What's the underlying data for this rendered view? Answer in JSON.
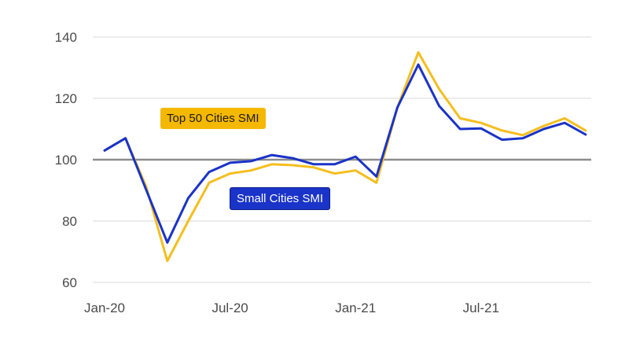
{
  "chart_data": {
    "type": "line",
    "x": [
      "Jan-20",
      "Feb-20",
      "Mar-20",
      "Apr-20",
      "May-20",
      "Jun-20",
      "Jul-20",
      "Aug-20",
      "Sep-20",
      "Oct-20",
      "Nov-20",
      "Dec-20",
      "Jan-21",
      "Feb-21",
      "Mar-21",
      "Apr-21",
      "May-21",
      "Jun-21",
      "Jul-21",
      "Aug-21",
      "Sep-21",
      "Oct-21",
      "Nov-21",
      "Dec-21"
    ],
    "x_tick_labels": [
      "Jan-20",
      "Jul-20",
      "Jan-21",
      "Jul-21"
    ],
    "y_ticks": [
      60,
      80,
      100,
      120,
      140
    ],
    "ylim": [
      60,
      140
    ],
    "reference_line": 100,
    "grid": "horizontal",
    "series": [
      {
        "name": "Top 50 Cities SMI",
        "color": "#F5BE1E",
        "values": [
          103,
          107,
          91,
          67,
          80,
          92.5,
          95.5,
          96.5,
          98.5,
          98.2,
          97.5,
          95.5,
          96.5,
          92.5,
          117,
          135,
          123,
          113.5,
          112,
          109.5,
          108,
          111,
          113.5,
          109.5
        ]
      },
      {
        "name": "Small Cities SMI",
        "color": "#1A33C8",
        "values": [
          103,
          107,
          90,
          73,
          87.5,
          96,
          99,
          99.5,
          101.5,
          100.5,
          98.5,
          98.5,
          101,
          94.5,
          117,
          131,
          117.5,
          110,
          110.2,
          106.5,
          107,
          110,
          112,
          108.2
        ]
      }
    ]
  }
}
